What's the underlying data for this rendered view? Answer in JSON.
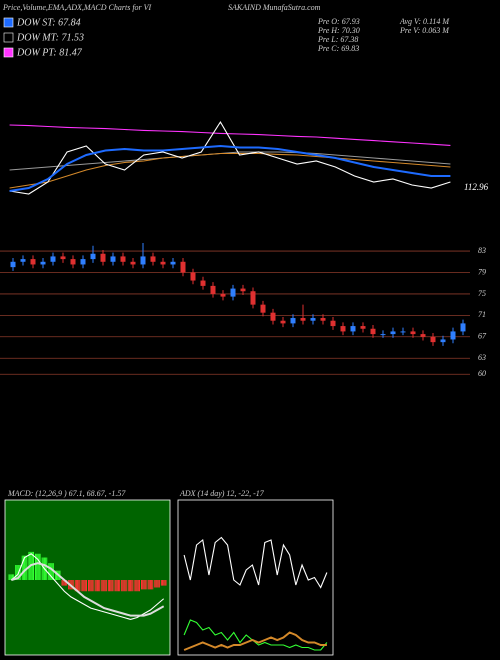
{
  "chart_data": [
    {
      "type": "line",
      "title": "Price,Volume,EMA,ADX,MACD Charts for VI",
      "subtitle": "SAKAIND MunafaSutra.com",
      "legend_items": [
        {
          "label": "DOW ST: 67.84",
          "color": "#1e6bff"
        },
        {
          "label": "DOW MT: 71.53",
          "color": "#000000"
        },
        {
          "label": "DOW PT: 81.47",
          "color": "#ff33ff"
        }
      ],
      "stats": [
        "Pre O: 67.93",
        "Pre H: 70.30",
        "Pre L: 67.38",
        "Pre C: 69.83",
        "Avg V: 0.114 M",
        "Pre V: 0.063 M"
      ],
      "annotation": "112.96",
      "categories": [
        null,
        null,
        null,
        null,
        null,
        null,
        null,
        null,
        null,
        null,
        null,
        null,
        null,
        null,
        null,
        null,
        null,
        null,
        null,
        null,
        null,
        null,
        null,
        null
      ],
      "ylim": [
        60,
        90
      ],
      "series": [
        {
          "color": "#9a9a9a",
          "values": [
            70,
            70.5,
            71,
            71.5,
            72,
            72.5,
            73,
            73.5,
            74,
            74.5,
            75,
            75.5,
            76,
            76,
            76,
            75.8,
            75.5,
            75,
            74.5,
            74,
            73.5,
            73,
            72.5,
            72
          ]
        },
        {
          "color": "#d4892a",
          "values": [
            64,
            65,
            66,
            68,
            70,
            71.5,
            72.5,
            73,
            74,
            74.5,
            75,
            75.5,
            75.5,
            75.5,
            75.2,
            75,
            74.5,
            74,
            73.5,
            73,
            72.5,
            72,
            71.5,
            71
          ]
        },
        {
          "color": "#ff33ff",
          "values": [
            85,
            84.8,
            84.5,
            84.2,
            84,
            83.8,
            83.5,
            83.2,
            83,
            82.8,
            82.5,
            82.2,
            82,
            81.8,
            81.5,
            81.2,
            81,
            80.6,
            80.2,
            79.8,
            79.4,
            79,
            78.6,
            78.2
          ]
        },
        {
          "color": "#ffffff",
          "values": [
            63,
            62,
            66,
            76,
            78,
            72,
            70,
            75,
            76,
            74,
            76,
            86,
            75,
            76,
            74,
            72,
            73,
            71,
            68,
            66,
            67,
            65,
            64,
            66
          ]
        },
        {
          "color": "#1e6bff",
          "values": [
            63,
            64,
            67,
            72,
            75,
            76.5,
            77,
            76.5,
            76.5,
            77,
            77.5,
            78,
            77.5,
            77.5,
            77,
            76,
            75,
            74,
            72.5,
            71,
            70,
            69,
            68,
            68
          ]
        }
      ]
    },
    {
      "type": "candlestick",
      "categories": [
        null,
        null,
        null,
        null,
        null,
        null,
        null,
        null,
        null,
        null,
        null,
        null,
        null,
        null,
        null,
        null,
        null,
        null,
        null,
        null,
        null,
        null,
        null,
        null,
        null,
        null,
        null,
        null,
        null,
        null,
        null,
        null,
        null,
        null,
        null,
        null,
        null,
        null,
        null,
        null,
        null,
        null,
        null,
        null,
        null,
        null
      ],
      "open": [
        80,
        81,
        81.5,
        80.5,
        81,
        82,
        81.5,
        80.5,
        81.5,
        82.5,
        81,
        82,
        81,
        80.5,
        82,
        81,
        80.5,
        81,
        79,
        77.5,
        76.5,
        75,
        74.5,
        76,
        75.5,
        73,
        71.5,
        70,
        69.5,
        70.5,
        70,
        70.5,
        70,
        69,
        68,
        69,
        68.5,
        67.5,
        67.5,
        68,
        68,
        67.5,
        67,
        66,
        66.5,
        68
      ],
      "high": [
        81.7,
        82.2,
        82.2,
        81.7,
        82.7,
        82.7,
        82.2,
        82.2,
        84,
        83.2,
        82.7,
        82.7,
        81.7,
        84.5,
        82.7,
        81.7,
        81.7,
        81.7,
        79.7,
        78.2,
        77.2,
        75.7,
        76.7,
        76.7,
        76.2,
        73.7,
        72.2,
        70.7,
        71.2,
        73,
        71.2,
        71.2,
        70.7,
        69.7,
        69.7,
        69.7,
        69.2,
        68.2,
        68.7,
        68.7,
        68.7,
        68.2,
        67.7,
        67.2,
        68.7,
        70.2
      ],
      "low": [
        79.3,
        80.3,
        79.8,
        79.8,
        80.3,
        80.8,
        79.8,
        79.8,
        80.8,
        80.3,
        80.3,
        80.3,
        79.8,
        79.8,
        80.3,
        79.8,
        79.8,
        78.3,
        76.8,
        75.8,
        74.3,
        73.8,
        73.8,
        74.8,
        72.3,
        70.8,
        69.3,
        68.8,
        68.8,
        69.3,
        69.3,
        69.3,
        68.3,
        67.3,
        67.3,
        67.8,
        66.8,
        66.8,
        66.8,
        67.3,
        66.8,
        66.3,
        65.3,
        65.3,
        65.8,
        67.3
      ],
      "close": [
        81,
        81.5,
        80.5,
        81,
        82,
        81.5,
        80.5,
        81.5,
        82.5,
        81,
        82,
        81,
        80.5,
        82,
        81,
        80.5,
        81,
        79,
        77.5,
        76.5,
        75,
        74.5,
        76,
        75.5,
        73,
        71.5,
        70,
        69.5,
        70.5,
        70,
        70.5,
        70,
        69,
        68,
        69,
        68.5,
        67.5,
        67.5,
        68,
        68,
        67.5,
        67,
        66,
        66.5,
        68,
        69.5
      ],
      "up_color": "#2f7fff",
      "down_color": "#e03030",
      "ylim": [
        58,
        86
      ],
      "yticks": [
        60,
        63,
        67,
        71,
        75,
        79,
        83
      ],
      "grid": true,
      "grid_color": "#8b3a2a"
    },
    {
      "type": "macd",
      "title": "MACD: (12,26,9 ) 67.1, 68.67, -1.57",
      "categories": [
        null,
        null,
        null,
        null,
        null,
        null,
        null,
        null,
        null,
        null,
        null,
        null,
        null,
        null,
        null,
        null,
        null,
        null,
        null,
        null,
        null,
        null,
        null,
        null
      ],
      "ylim": [
        -4,
        4
      ],
      "histogram": {
        "up_color": "#33ff33",
        "down_color": "#ff3333",
        "values": [
          0.3,
          0.8,
          1.3,
          1.5,
          1.4,
          1.2,
          0.9,
          0.5,
          -0.3,
          -0.5,
          -0.6,
          -0.6,
          -0.6,
          -0.6,
          -0.6,
          -0.6,
          -0.6,
          -0.6,
          -0.6,
          -0.6,
          -0.5,
          -0.5,
          -0.4,
          -0.3
        ]
      },
      "series": [
        {
          "color": "#ffffff",
          "values": [
            0,
            0.3,
            1.2,
            1.4,
            1.1,
            0.6,
            0.2,
            -0.2,
            -0.6,
            -0.9,
            -1.1,
            -1.3,
            -1.5,
            -1.6,
            -1.7,
            -1.8,
            -1.9,
            -2.0,
            -2.1,
            -2.0,
            -1.8,
            -1.6,
            -1.3,
            -1.0
          ]
        },
        {
          "color": "#dddddd",
          "values": [
            0,
            0.1,
            0.5,
            0.8,
            0.9,
            0.8,
            0.6,
            0.3,
            0,
            -0.3,
            -0.6,
            -0.9,
            -1.1,
            -1.3,
            -1.5,
            -1.6,
            -1.7,
            -1.8,
            -1.9,
            -1.9,
            -1.9,
            -1.8,
            -1.6,
            -1.4
          ]
        }
      ]
    },
    {
      "type": "line",
      "title": "ADX  (14 day) 12, -22, -17",
      "categories": [
        null,
        null,
        null,
        null,
        null,
        null,
        null,
        null,
        null,
        null,
        null,
        null,
        null,
        null,
        null,
        null,
        null,
        null,
        null,
        null,
        null,
        null,
        null,
        null
      ],
      "ylim": [
        0,
        60
      ],
      "series": [
        {
          "color": "#ffffff",
          "values": [
            40,
            30,
            44,
            46,
            32,
            45,
            47,
            44,
            30,
            28,
            34,
            36,
            28,
            45,
            46,
            32,
            44,
            40,
            28,
            36,
            30,
            31,
            27,
            33
          ]
        },
        {
          "color": "#33ff33",
          "values": [
            8,
            14,
            13,
            10,
            11,
            8,
            9,
            6,
            9,
            5,
            8,
            6,
            4,
            5,
            4,
            4,
            4,
            3,
            4,
            3,
            3,
            2,
            2,
            5
          ]
        },
        {
          "color": "#d4892a",
          "values": [
            2,
            3,
            4,
            5,
            4,
            3,
            4,
            3,
            4,
            4,
            5,
            6,
            5,
            6,
            7,
            6,
            7,
            9,
            8,
            6,
            5,
            5,
            4,
            4
          ]
        }
      ]
    }
  ]
}
